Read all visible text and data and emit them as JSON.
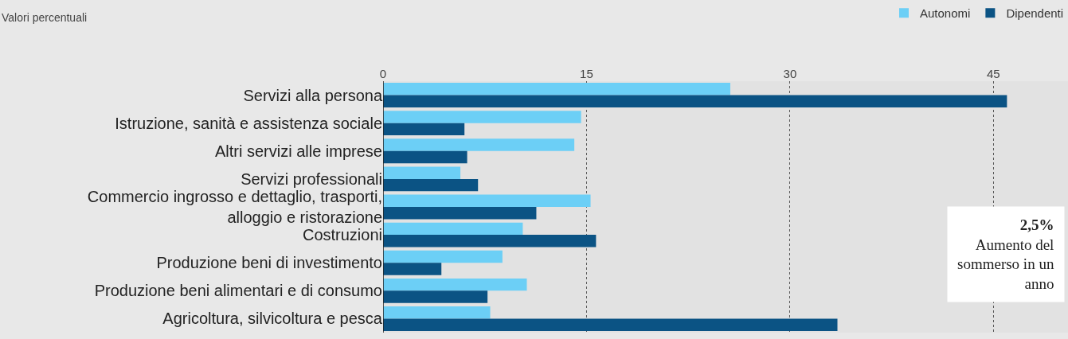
{
  "chart_data": {
    "type": "bar",
    "orientation": "horizontal",
    "subtitle": "Valori percentuali",
    "categories": [
      "Servizi alla persona",
      "Istruzione, sanità e assistenza sociale",
      "Altri servizi alle imprese",
      "Servizi professionali",
      "Commercio ingrosso e dettaglio, trasporti, alloggio e ristorazione",
      "Costruzioni",
      "Produzione beni di investimento",
      "Produzione beni alimentari e di consumo",
      "Agricoltura, silvicoltura e pesca"
    ],
    "series": [
      {
        "name": "Autonomi",
        "color": "#6ccff6",
        "values": [
          25.6,
          14.6,
          14.1,
          5.7,
          15.3,
          10.3,
          8.8,
          10.6,
          7.9
        ]
      },
      {
        "name": "Dipendenti",
        "color": "#0b5384",
        "values": [
          46.0,
          6.0,
          6.2,
          7.0,
          11.3,
          15.7,
          4.3,
          7.7,
          33.5
        ]
      }
    ],
    "xlim": [
      0,
      50.5
    ],
    "xticks": [
      0,
      15,
      30,
      45
    ],
    "grid": "x",
    "legend": "top right",
    "annotations": [
      "2,5%",
      "Aumento del sommerso in un anno"
    ]
  }
}
